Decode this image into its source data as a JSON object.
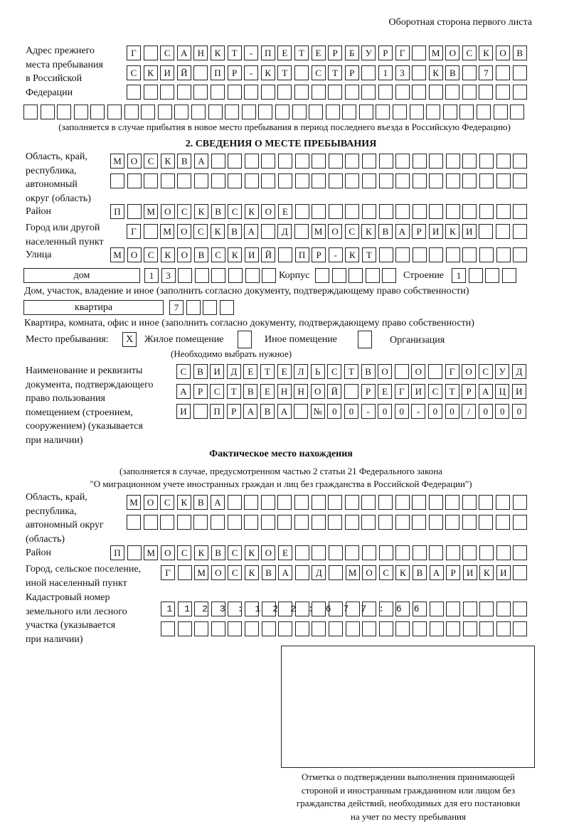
{
  "header": "Оборотная сторона первого листа",
  "prev_address": {
    "label": "Адрес прежнего места пребывания в Российской Федерации",
    "label_lines": [
      "Адрес прежнего",
      "места пребывания",
      "в Российской",
      "Федерации"
    ],
    "rows": [
      "Г САНКТ-ПЕТЕРБУРГ МОСКОВ",
      "СКИЙ ПР-КТ СТР 13 КВ 7",
      "",
      ""
    ],
    "note": "(заполняется в случае прибытия в новое место пребывания в период последнего въезда в Российскую Федерацию)"
  },
  "section2": {
    "title": "2. СВЕДЕНИЯ О МЕСТЕ ПРЕБЫВАНИЯ",
    "region_label": [
      "Область, край,",
      "республика,",
      "автономный",
      "округ (область)"
    ],
    "region_rows": [
      "МОСКВА",
      ""
    ],
    "district_label": "Район",
    "district": "П МОСКВСКОЕ",
    "city_label": [
      "Город или другой",
      "населенный пункт"
    ],
    "city": "Г МОСКВА Д МОСКВАРИКИ",
    "street_label": "Улица",
    "street": "МОСКОВСКИЙ ПР-КТ",
    "house_type": "дом",
    "house": "13",
    "korpus_label": "Корпус",
    "korpus": "",
    "building_label": "Строение",
    "building": "1",
    "house_note": "Дом, участок, владение и иное (заполнить согласно документу, подтверждающему право собственности)",
    "flat_type": "квартира",
    "flat": "7",
    "flat_note": "Квартира, комната, офис и иное (заполнить согласно документу, подтверждающему право собственности)",
    "stay_label": "Место пребывания:",
    "stay_options": [
      {
        "label": "Жилое помещение",
        "mark": "Х"
      },
      {
        "label": "Иное помещение",
        "mark": ""
      },
      {
        "label": "Организация",
        "mark": ""
      }
    ],
    "stay_note": "(Необходимо выбрать нужное)",
    "doc_label": [
      "Наименование и реквизиты",
      "документа, подтверждающего",
      "право пользования",
      "помещением (строением,",
      "сооружением) (указывается",
      "при наличии)"
    ],
    "doc_rows": [
      "СВИДЕТЕЛЬСТВО О ГОСУД",
      "АРСТВЕННОЙ РЕГИСТРАЦИ",
      "И ПРАВА №00-00-00/000"
    ]
  },
  "actual": {
    "title": "Фактическое место нахождения",
    "subtitle": [
      "(заполняется в случае, предусмотренном частью 2 статьи 21 Федерального закона",
      "\"О миграционном учете иностранных граждан и лиц без гражданства в Российской Федерации\")"
    ],
    "region_label": [
      "Область, край,",
      "республика,",
      "автономный округ",
      "(область)"
    ],
    "region_rows": [
      "МОСКВА",
      ""
    ],
    "district_label": "Район",
    "district": "П МОСКВСКОЕ",
    "city_label": [
      "Город, сельское поселение,",
      "иной населенный пункт"
    ],
    "city": "Г МОСКВА Д МОСКВАРИКИ",
    "cadastral_label": [
      "Кадастровый номер",
      "земельного или лесного",
      "участка (указывается",
      "при наличии)"
    ],
    "cadastral_rows": [
      "1123:122:677:66",
      ""
    ]
  },
  "stamp_caption": [
    "Отметка о подтверждении выполнения принимающей",
    "стороной и иностранным гражданином или лицом без",
    "гражданства действий, необходимых для его постановки",
    "на учет по месту пребывания"
  ]
}
